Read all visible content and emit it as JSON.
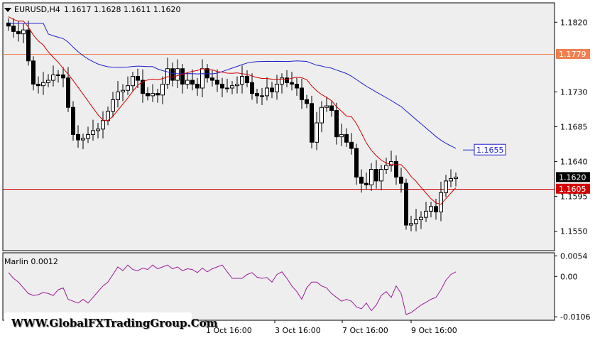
{
  "header": {
    "symbol_tf": "EURUSD,H4",
    "ohlc": "1.1617 1.1628 1.1611 1.1620"
  },
  "indicator": {
    "label": "Marlin 0.0012"
  },
  "watermark": "WWW.GlobalFXTradingGroup.Com",
  "colors": {
    "background": "#ffffff",
    "plot_bg": "#eeeeee",
    "candle_up": "#ffffff",
    "candle_down": "#000000",
    "ma_slow": "#1e1ecc",
    "ma_fast": "#d40000",
    "hline_orange": "#f08050",
    "hline_red": "#d40000",
    "oscillator": "#9a1c9a",
    "box_blue": "#1e1ecc",
    "box_red": "#d40000",
    "box_black": "#000000"
  },
  "chart_data": [
    {
      "type": "candlestick",
      "price_ticks": [
        "1.1820",
        "1.1779",
        "1.1730",
        "1.1685",
        "1.1640",
        "1.1620",
        "1.1605",
        "1.1595",
        "1.1550"
      ],
      "ylim": [
        1.1525,
        1.1845
      ],
      "x_labels": [
        "1 Oct 16:00",
        "3 Oct 16:00",
        "7 Oct 16:00",
        "9 Oct 16:00"
      ],
      "levels": [
        {
          "value": 1.1779,
          "label": "1.1779",
          "style": "orange"
        },
        {
          "value": 1.1605,
          "label": "1.1605",
          "style": "red"
        }
      ],
      "markers": [
        {
          "value": 1.1655,
          "label": "1.1655",
          "style": "blue"
        },
        {
          "value": 1.162,
          "label": "1.1620",
          "style": "black"
        }
      ],
      "closes": [
        1.1815,
        1.1808,
        1.1805,
        1.181,
        1.177,
        1.174,
        1.1738,
        1.1742,
        1.1745,
        1.1752,
        1.1752,
        1.1748,
        1.171,
        1.1675,
        1.1668,
        1.167,
        1.1675,
        1.168,
        1.1682,
        1.1693,
        1.1705,
        1.172,
        1.173,
        1.1732,
        1.1738,
        1.175,
        1.1745,
        1.1728,
        1.1725,
        1.1728,
        1.1726,
        1.174,
        1.176,
        1.1745,
        1.176,
        1.174,
        1.1745,
        1.174,
        1.1735,
        1.176,
        1.1748,
        1.1745,
        1.174,
        1.1735,
        1.1735,
        1.1738,
        1.174,
        1.175,
        1.1742,
        1.1728,
        1.1725,
        1.1725,
        1.1735,
        1.173,
        1.174,
        1.1748,
        1.1742,
        1.174,
        1.1735,
        1.172,
        1.1715,
        1.1665,
        1.169,
        1.171,
        1.1712,
        1.1706,
        1.1672,
        1.1675,
        1.1665,
        1.1657,
        1.162,
        1.1612,
        1.161,
        1.163,
        1.1615,
        1.163,
        1.1635,
        1.164,
        1.162,
        1.1612,
        1.1558,
        1.156,
        1.1565,
        1.1568,
        1.1576,
        1.1582,
        1.1575,
        1.16,
        1.1615,
        1.1618,
        1.162
      ]
    },
    {
      "type": "line",
      "name": "Marlin",
      "value_label": "0.0012",
      "yticks": [
        "0.0054",
        "0.00",
        "-0.0106"
      ],
      "ylim": [
        -0.0115,
        0.0062
      ],
      "values": [
        0.001,
        -0.0005,
        -0.0015,
        -0.003,
        -0.0045,
        -0.005,
        -0.0048,
        -0.0042,
        -0.0045,
        -0.005,
        -0.0035,
        -0.003,
        -0.006,
        -0.0065,
        -0.007,
        -0.006,
        -0.007,
        -0.0055,
        -0.004,
        -0.0025,
        -0.0015,
        0.0005,
        0.0025,
        0.0015,
        0.003,
        0.0018,
        0.0015,
        0.0022,
        0.0018,
        0.003,
        0.002,
        0.0025,
        0.003,
        0.002,
        0.0025,
        0.0015,
        0.002,
        0.0018,
        0.001,
        0.0022,
        0.0012,
        0.002,
        0.0025,
        0.003,
        0.0012,
        -0.0005,
        -0.0005,
        -0.0005,
        0.0005,
        0.001,
        -0.0002,
        -0.0005,
        -0.0003,
        -0.0015,
        0.0005,
        0.0012,
        -0.0005,
        -0.0025,
        -0.004,
        -0.006,
        -0.003,
        -0.0015,
        -0.0015,
        -0.0025,
        -0.003,
        -0.0045,
        -0.0055,
        -0.0065,
        -0.006,
        -0.0065,
        -0.008,
        -0.0085,
        -0.007,
        -0.009,
        -0.0075,
        -0.005,
        -0.004,
        -0.0055,
        -0.0025,
        -0.0045,
        -0.01,
        -0.0095,
        -0.0085,
        -0.0075,
        -0.0068,
        -0.006,
        -0.0055,
        -0.0035,
        -0.001,
        0.0005,
        0.0012
      ]
    }
  ]
}
